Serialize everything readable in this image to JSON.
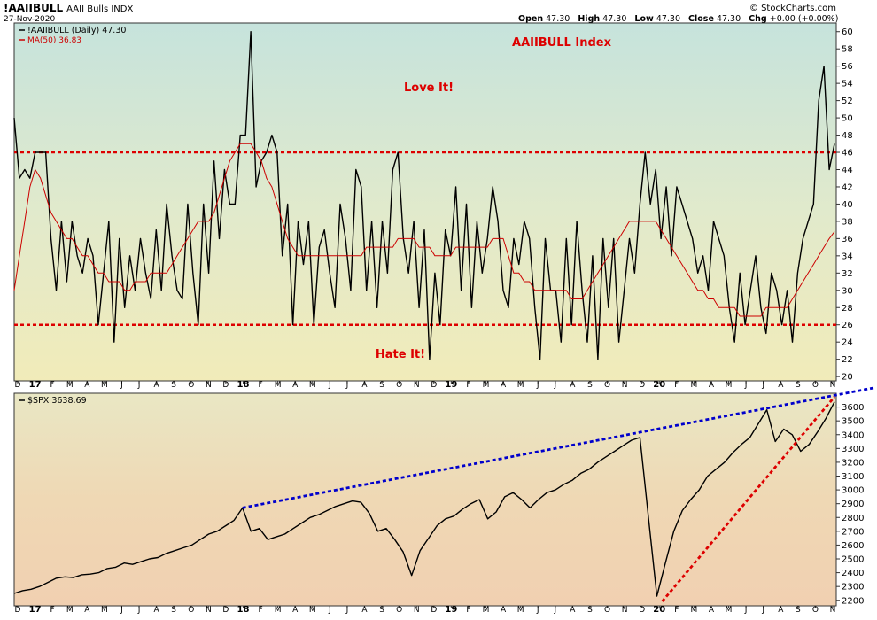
{
  "header": {
    "symbol": "!AAIIBULL",
    "name": "AAII Bulls INDX",
    "date": "27-Nov-2020",
    "brand": "© StockCharts.com",
    "open_label": "Open",
    "open": "47.30",
    "high_label": "High",
    "high": "47.30",
    "low_label": "Low",
    "low": "47.30",
    "close_label": "Close",
    "close": "47.30",
    "chg_label": "Chg",
    "chg": "+0.00 (+0.00%)"
  },
  "colors": {
    "price_line": "#000000",
    "ma_line": "#cc0000",
    "threshold_line": "#dd0000",
    "resistance_trend": "#0000cc",
    "support_trend": "#dd0000",
    "annotation_text": "#dd0000"
  },
  "chart_data": [
    {
      "type": "line",
      "panel": "top",
      "legend_price": "!AAIIBULL (Daily) 47.30",
      "legend_ma": "MA(50) 36.83",
      "title": "AAIIBULL Index",
      "annotations": {
        "upper": "Love It!",
        "lower": "Hate It!"
      },
      "thresholds": [
        46,
        26
      ],
      "ylim": [
        19.5,
        61
      ],
      "yticks": [
        "60",
        "58",
        "56",
        "54",
        "52",
        "50",
        "48",
        "46",
        "44",
        "42",
        "40",
        "38",
        "36",
        "34",
        "32",
        "30",
        "28",
        "26",
        "24",
        "22",
        "20"
      ],
      "x_labels": [
        "D",
        "17",
        "F",
        "M",
        "A",
        "M",
        "J",
        "J",
        "A",
        "S",
        "O",
        "N",
        "D",
        "18",
        "F",
        "M",
        "A",
        "M",
        "J",
        "J",
        "A",
        "S",
        "O",
        "N",
        "D",
        "19",
        "F",
        "M",
        "A",
        "M",
        "J",
        "J",
        "A",
        "S",
        "O",
        "N",
        "D",
        "20",
        "F",
        "M",
        "A",
        "M",
        "J",
        "J",
        "A",
        "S",
        "O",
        "N"
      ],
      "x_label_bold": [
        "17",
        "18",
        "19",
        "20"
      ],
      "series": [
        {
          "values": [
            50,
            43,
            44,
            43,
            46,
            46,
            46,
            36,
            30,
            38,
            31,
            38,
            34,
            32,
            36,
            34,
            26,
            32,
            38,
            24,
            36,
            28,
            34,
            30,
            36,
            32,
            29,
            37,
            30,
            40,
            34,
            30,
            29,
            40,
            32,
            26,
            40,
            32,
            45,
            36,
            44,
            40,
            40,
            48,
            48,
            60,
            42,
            45,
            46,
            48,
            46,
            34,
            40,
            26,
            38,
            33,
            38,
            26,
            35,
            37,
            32,
            28,
            40,
            36,
            30,
            44,
            42,
            30,
            38,
            28,
            38,
            32,
            44,
            46,
            36,
            32,
            38,
            28,
            37,
            22,
            32,
            26,
            37,
            34,
            42,
            30,
            40,
            28,
            38,
            32,
            36,
            42,
            38,
            30,
            28,
            36,
            33,
            38,
            36,
            28,
            22,
            36,
            30,
            30,
            24,
            36,
            26,
            38,
            30,
            24,
            34,
            22,
            36,
            28,
            36,
            24,
            30,
            36,
            32,
            40,
            46,
            40,
            44,
            36,
            42,
            34,
            42,
            40,
            38,
            36,
            32,
            34,
            30,
            38,
            36,
            34,
            28,
            24,
            32,
            26,
            30,
            34,
            28,
            25,
            32,
            30,
            26,
            30,
            24,
            32,
            36,
            38,
            40,
            52,
            56,
            44,
            47
          ]
        },
        {
          "values": [
            30,
            34,
            38,
            42,
            44,
            43,
            41,
            39,
            38,
            37,
            36,
            36,
            35,
            34,
            34,
            33,
            32,
            32,
            31,
            31,
            31,
            30,
            30,
            31,
            31,
            31,
            32,
            32,
            32,
            32,
            33,
            34,
            35,
            36,
            37,
            38,
            38,
            38,
            39,
            41,
            43,
            45,
            46,
            47,
            47,
            47,
            46,
            45,
            43,
            42,
            40,
            38,
            36,
            35,
            34,
            34,
            34,
            34,
            34,
            34,
            34,
            34,
            34,
            34,
            34,
            34,
            34,
            35,
            35,
            35,
            35,
            35,
            35,
            36,
            36,
            36,
            36,
            35,
            35,
            35,
            34,
            34,
            34,
            34,
            35,
            35,
            35,
            35,
            35,
            35,
            35,
            36,
            36,
            36,
            34,
            32,
            32,
            31,
            31,
            30,
            30,
            30,
            30,
            30,
            30,
            30,
            29,
            29,
            29,
            30,
            31,
            32,
            33,
            34,
            35,
            36,
            37,
            38,
            38,
            38,
            38,
            38,
            38,
            37,
            36,
            35,
            34,
            33,
            32,
            31,
            30,
            30,
            29,
            29,
            28,
            28,
            28,
            28,
            27,
            27,
            27,
            27,
            27,
            28,
            28,
            28,
            28,
            28,
            29,
            30,
            31,
            32,
            33,
            34,
            35,
            36,
            36.8
          ]
        }
      ]
    },
    {
      "type": "line",
      "panel": "bottom",
      "legend_price": "$SPX 3638.69",
      "ylim": [
        2160,
        3700
      ],
      "yticks": [
        "3600",
        "3500",
        "3400",
        "3300",
        "3200",
        "3100",
        "3000",
        "2900",
        "2800",
        "2700",
        "2600",
        "2500",
        "2400",
        "2300",
        "2200"
      ],
      "x_labels": [
        "D",
        "17",
        "F",
        "M",
        "A",
        "M",
        "J",
        "J",
        "A",
        "S",
        "O",
        "N",
        "D",
        "18",
        "F",
        "M",
        "A",
        "M",
        "J",
        "J",
        "A",
        "S",
        "O",
        "N",
        "D",
        "19",
        "F",
        "M",
        "A",
        "M",
        "J",
        "J",
        "A",
        "S",
        "O",
        "N",
        "D",
        "20",
        "F",
        "M",
        "A",
        "M",
        "J",
        "J",
        "A",
        "S",
        "O",
        "N"
      ],
      "x_label_bold": [
        "17",
        "18",
        "19",
        "20"
      ],
      "series": [
        {
          "values": [
            2250,
            2270,
            2280,
            2300,
            2330,
            2360,
            2370,
            2365,
            2385,
            2390,
            2400,
            2430,
            2440,
            2470,
            2460,
            2480,
            2500,
            2510,
            2540,
            2560,
            2580,
            2600,
            2640,
            2680,
            2700,
            2740,
            2780,
            2870,
            2700,
            2720,
            2640,
            2660,
            2680,
            2720,
            2760,
            2800,
            2820,
            2850,
            2880,
            2900,
            2920,
            2910,
            2830,
            2700,
            2720,
            2640,
            2550,
            2380,
            2560,
            2650,
            2740,
            2790,
            2810,
            2860,
            2900,
            2930,
            2790,
            2840,
            2950,
            2980,
            2930,
            2870,
            2930,
            2980,
            3000,
            3040,
            3070,
            3120,
            3150,
            3200,
            3240,
            3280,
            3320,
            3360,
            3380,
            2800,
            2230,
            2470,
            2700,
            2850,
            2930,
            3000,
            3100,
            3150,
            3200,
            3270,
            3330,
            3380,
            3480,
            3580,
            3350,
            3440,
            3400,
            3280,
            3330,
            3420,
            3520,
            3638
          ]
        }
      ],
      "trendlines": [
        {
          "name": "resistance",
          "from": [
            1,
            2872
          ],
          "to": [
            1,
            3700
          ]
        },
        {
          "name": "support",
          "from": [
            1,
            2192
          ],
          "to": [
            1,
            3700
          ]
        }
      ]
    }
  ]
}
